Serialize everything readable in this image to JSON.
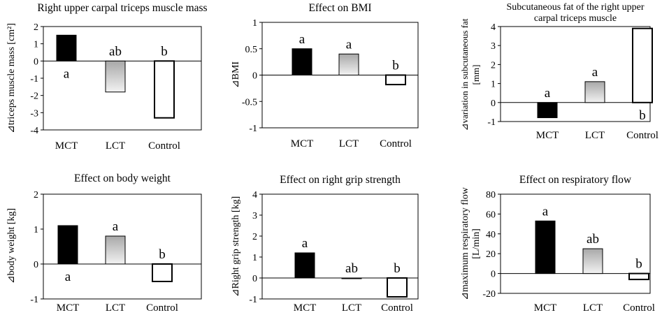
{
  "colors": {
    "MCT": "#000000",
    "LCT": "#c8c8c8",
    "Control": "#ffffff",
    "stroke": "#000000"
  },
  "chart_data": [
    {
      "type": "bar",
      "title": [
        "Right upper carpal triceps muscle mass"
      ],
      "ylabel": [
        "⊿triceps muscle mass [cm²]"
      ],
      "categories": [
        "MCT",
        "LCT",
        "Control"
      ],
      "values": [
        1.5,
        -1.8,
        -3.3
      ],
      "letters": [
        "a",
        "ab",
        "b"
      ],
      "ylim": [
        -4,
        2
      ],
      "yticks": [
        "-4",
        "-3",
        "-2",
        "-1",
        "0",
        "1",
        "2"
      ]
    },
    {
      "type": "bar",
      "title": [
        "Effect on BMI"
      ],
      "ylabel": [
        "⊿BMI"
      ],
      "categories": [
        "MCT",
        "LCT",
        "Control"
      ],
      "values": [
        0.5,
        0.4,
        -0.18
      ],
      "letters": [
        "a",
        "a",
        "b"
      ],
      "ylim": [
        -1,
        1
      ],
      "yticks": [
        "-1",
        "-0.5",
        "0",
        "0.5",
        "1"
      ]
    },
    {
      "type": "bar",
      "title": [
        "Subcutaneous fat of the right upper",
        "carpal triceps muscle"
      ],
      "ylabel": [
        "⊿variation in subcutaneous fat",
        "[mm]"
      ],
      "categories": [
        "MCT",
        "LCT",
        "Control"
      ],
      "values": [
        -0.8,
        1.1,
        3.9
      ],
      "letters": [
        "a",
        "a",
        "b"
      ],
      "ylim": [
        -1,
        4
      ],
      "yticks": [
        "-1",
        "0",
        "1",
        "2",
        "3",
        "4"
      ]
    },
    {
      "type": "bar",
      "title": [
        "Effect on body weight"
      ],
      "ylabel": [
        "⊿body weight  [kg]"
      ],
      "categories": [
        "MCT",
        "LCT",
        "Control"
      ],
      "values": [
        1.1,
        0.8,
        -0.5
      ],
      "letters": [
        "a",
        "a",
        "b"
      ],
      "ylim": [
        -1,
        2
      ],
      "yticks": [
        "-1",
        "0",
        "1",
        "2"
      ]
    },
    {
      "type": "bar",
      "title": [
        "Effect on right grip strength"
      ],
      "ylabel": [
        "⊿Right grip strength [kg]"
      ],
      "categories": [
        "MCT",
        "LCT",
        "Control"
      ],
      "values": [
        1.2,
        0.0,
        -0.9
      ],
      "letters": [
        "a",
        "ab",
        "b"
      ],
      "ylim": [
        -1,
        4
      ],
      "yticks": [
        "-1",
        "0",
        "1",
        "2",
        "3",
        "4"
      ]
    },
    {
      "type": "bar",
      "title": [
        "Effect on respiratory flow"
      ],
      "ylabel": [
        "⊿maximum  respiratory flow",
        "[L/min]"
      ],
      "categories": [
        "MCT",
        "LCT",
        "Control"
      ],
      "values": [
        53,
        25,
        -6
      ],
      "letters": [
        "a",
        "ab",
        "b"
      ],
      "ylim": [
        -20,
        80
      ],
      "yticks": [
        "-20",
        "0",
        "20",
        "40",
        "60",
        "80"
      ]
    }
  ]
}
